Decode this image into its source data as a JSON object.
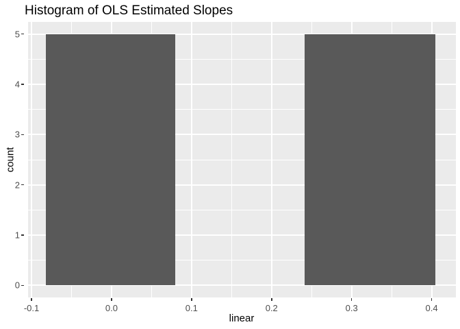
{
  "chart_data": {
    "type": "bar",
    "subtype": "histogram",
    "title": "Histogram of OLS Estimated Slopes",
    "xlabel": "linear",
    "ylabel": "count",
    "x_ticks": [
      -0.1,
      0.0,
      0.1,
      0.2,
      0.3,
      0.4
    ],
    "x_tick_labels": [
      "-0.1",
      "0.0",
      "0.1",
      "0.2",
      "0.3",
      "0.4"
    ],
    "y_ticks": [
      0,
      1,
      2,
      3,
      4,
      5
    ],
    "y_tick_labels": [
      "0",
      "1",
      "2",
      "3",
      "4",
      "5"
    ],
    "x_minor_ticks": [
      -0.05,
      0.05,
      0.15,
      0.25,
      0.35
    ],
    "y_minor_ticks": [
      0.5,
      1.5,
      2.5,
      3.5,
      4.5
    ],
    "xlim": [
      -0.1043,
      0.4303
    ],
    "ylim": [
      -0.24,
      5.24
    ],
    "grid": "on",
    "legend": "none",
    "bars": [
      {
        "x0": -0.082,
        "x1": 0.08,
        "count": 5
      },
      {
        "x0": 0.241,
        "x1": 0.405,
        "count": 5
      }
    ],
    "colors": {
      "bar_fill": "#595959",
      "panel_background": "#EBEBEB",
      "grid_major": "#FFFFFF",
      "grid_minor": "#FFFFFF",
      "tick_mark": "#333333",
      "tick_label": "#4D4D4D",
      "title": "#000000",
      "axis_title": "#000000",
      "figure_background": "#FFFFFF"
    }
  }
}
